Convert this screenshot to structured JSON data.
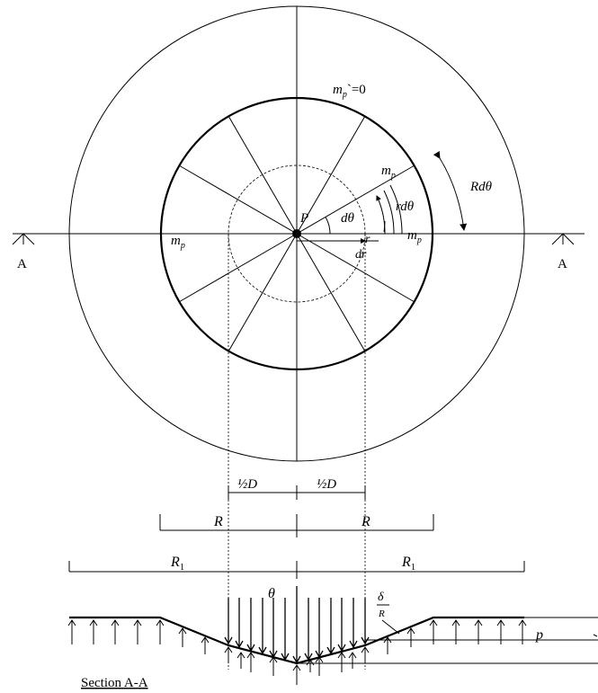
{
  "labels": {
    "mp_zero": "m",
    "mp_zero_sub": "p",
    "mp_zero_tail": "`=0",
    "mp": "m",
    "mp_sub": "p",
    "P": "P",
    "dtheta": "dθ",
    "rdtheta": "rdθ",
    "Rdtheta": "Rdθ",
    "r": "r",
    "dr": "dr",
    "A_left": "A",
    "A_right": "A",
    "half_D": "½D",
    "R": "R",
    "R1": "R",
    "R1_sub": "1",
    "theta": "θ",
    "delta": "δ",
    "delta_den": "R",
    "p": "p",
    "section": "Section A-A"
  }
}
